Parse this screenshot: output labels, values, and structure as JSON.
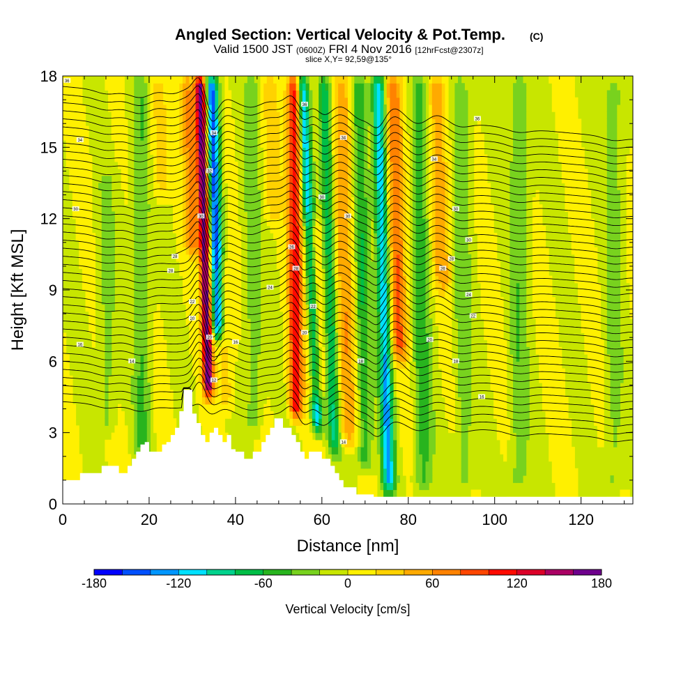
{
  "chart_data": {
    "type": "heatmap",
    "title": "Angled Section: Vertical Velocity & Pot.Temp.",
    "title_units": "(C)",
    "subtitle": {
      "valid": "Valid 1500 JST",
      "utc": "(0600Z)",
      "date": "FRI 4 Nov 2016",
      "forecast": "[12hrFcst@2307z]"
    },
    "slice_label": "slice X,Y= 92,59@135°",
    "xlabel": "Distance [nm]",
    "ylabel": "Height [Kft MSL]",
    "xlim": [
      0,
      132
    ],
    "ylim": [
      0,
      18
    ],
    "x_ticks": [
      0,
      20,
      40,
      60,
      80,
      100,
      120
    ],
    "y_ticks": [
      0,
      3,
      6,
      9,
      12,
      15,
      18
    ],
    "colorbar": {
      "label": "Vertical Velocity [cm/s]",
      "range": [
        -180,
        180
      ],
      "step": 20,
      "tick_values": [
        -180,
        -120,
        -60,
        0,
        60,
        120,
        180
      ],
      "colors": [
        "#0000ff",
        "#0050ff",
        "#0096ff",
        "#00e1ff",
        "#00d28c",
        "#00be46",
        "#28b41e",
        "#78d21e",
        "#c8e600",
        "#fff000",
        "#ffd200",
        "#ffaa00",
        "#ff8200",
        "#ff4600",
        "#ff0a00",
        "#dc0028",
        "#aa0064",
        "#6e008c"
      ]
    },
    "series": [
      {
        "kind": "updraft",
        "bands": [
          {
            "x": 31.8,
            "top": 18,
            "bottom": 4.6,
            "lean": 2.0,
            "amp": 175,
            "width": 1.2
          },
          {
            "x": 29.0,
            "top": 18,
            "bottom": 10.5,
            "lean": 1.0,
            "amp": 65,
            "width": 1.8
          },
          {
            "x": 37.0,
            "top": 10,
            "bottom": 4.0,
            "lean": 1.0,
            "amp": 35,
            "width": 1.8
          },
          {
            "x": 53.5,
            "top": 18,
            "bottom": 3.6,
            "lean": 0.5,
            "amp": 115,
            "width": 1.6
          },
          {
            "x": 57.5,
            "top": 12,
            "bottom": 4.5,
            "lean": 1.5,
            "amp": 55,
            "width": 2.2
          },
          {
            "x": 64.5,
            "top": 18,
            "bottom": 2.5,
            "lean": 1.5,
            "amp": 55,
            "width": 2.4
          },
          {
            "x": 76.5,
            "top": 18,
            "bottom": 6.0,
            "lean": 1.5,
            "amp": 80,
            "width": 2.0
          },
          {
            "x": 86.5,
            "top": 18,
            "bottom": 9.0,
            "lean": 1.5,
            "amp": 55,
            "width": 2.0
          },
          {
            "x": 48.0,
            "top": 18,
            "bottom": 12.0,
            "lean": 1.0,
            "amp": 35,
            "width": 2.0
          },
          {
            "x": 22.0,
            "top": 18,
            "bottom": 13.0,
            "lean": 1.0,
            "amp": 30,
            "width": 2.0
          }
        ]
      },
      {
        "kind": "downdraft",
        "bands": [
          {
            "x": 34.5,
            "top": 18,
            "bottom": 7.0,
            "lean": 1.5,
            "amp": -150,
            "width": 1.4
          },
          {
            "x": 55.5,
            "top": 18,
            "bottom": 3.0,
            "lean": 3.5,
            "amp": -120,
            "width": 1.3
          },
          {
            "x": 60.5,
            "top": 18,
            "bottom": 2.2,
            "lean": 2.5,
            "amp": -80,
            "width": 1.5
          },
          {
            "x": 68.5,
            "top": 18,
            "bottom": 1.5,
            "lean": 1.5,
            "amp": -60,
            "width": 1.8
          },
          {
            "x": 73.0,
            "top": 18,
            "bottom": 0.5,
            "lean": 2.5,
            "amp": -120,
            "width": 1.5
          },
          {
            "x": 82.5,
            "top": 18,
            "bottom": 0.5,
            "lean": 1.0,
            "amp": -50,
            "width": 2.0
          },
          {
            "x": 18.0,
            "top": 18,
            "bottom": 2.0,
            "lean": 0.5,
            "amp": -40,
            "width": 2.0
          },
          {
            "x": 10.0,
            "top": 14,
            "bottom": 3.0,
            "lean": 0.5,
            "amp": -30,
            "width": 2.0
          },
          {
            "x": 105.5,
            "top": 18,
            "bottom": 0.5,
            "lean": 0.0,
            "amp": -35,
            "width": 2.2
          },
          {
            "x": 43.5,
            "top": 18,
            "bottom": 3.0,
            "lean": 1.0,
            "amp": -35,
            "width": 2.0
          },
          {
            "x": 92.0,
            "top": 18,
            "bottom": 0.5,
            "lean": 1.0,
            "amp": -35,
            "width": 2.0
          },
          {
            "x": 127.5,
            "top": 18,
            "bottom": 0.5,
            "lean": 0.0,
            "amp": -30,
            "width": 2.0
          }
        ]
      }
    ],
    "terrain": {
      "x": [
        0,
        4,
        4,
        9,
        9,
        13,
        13,
        15,
        15,
        16,
        16,
        17,
        17,
        18,
        18,
        19,
        19,
        20,
        20,
        23,
        23,
        24,
        24,
        25,
        25,
        26,
        26,
        27,
        27,
        28,
        28,
        30,
        30,
        31,
        31,
        32,
        32,
        33,
        33,
        34,
        34,
        35,
        35,
        36,
        36,
        37,
        37,
        38,
        38,
        39,
        39,
        40,
        40,
        42,
        42,
        44,
        44,
        46,
        46,
        47,
        47,
        48,
        48,
        49,
        49,
        50,
        50,
        51,
        51,
        53,
        53,
        54,
        54,
        55,
        55,
        56,
        56,
        57,
        57,
        58,
        58,
        60,
        60,
        62,
        62,
        63,
        63,
        64,
        64,
        65,
        65,
        66,
        66,
        67,
        67,
        68,
        68,
        70,
        70,
        72,
        72,
        132
      ],
      "y": [
        1.0,
        1.0,
        1.3,
        1.3,
        1.6,
        1.6,
        1.3,
        1.3,
        1.6,
        1.6,
        1.9,
        1.9,
        2.2,
        2.2,
        2.5,
        2.5,
        2.6,
        2.6,
        2.2,
        2.2,
        2.5,
        2.5,
        2.6,
        2.6,
        2.9,
        2.9,
        3.2,
        3.2,
        3.9,
        3.9,
        4.8,
        4.8,
        3.8,
        3.8,
        3.4,
        3.4,
        2.9,
        2.9,
        2.6,
        2.6,
        3.0,
        3.0,
        3.2,
        3.2,
        2.9,
        2.9,
        2.6,
        2.6,
        2.9,
        2.9,
        2.3,
        2.3,
        2.2,
        2.2,
        1.9,
        1.9,
        2.2,
        2.2,
        2.6,
        2.6,
        2.9,
        2.9,
        3.2,
        3.2,
        3.6,
        3.6,
        3.6,
        3.6,
        3.2,
        3.2,
        2.9,
        2.9,
        2.6,
        2.6,
        2.2,
        2.2,
        1.9,
        1.9,
        2.2,
        2.2,
        2.2,
        2.2,
        1.9,
        1.9,
        1.6,
        1.6,
        1.3,
        1.3,
        1.0,
        1.0,
        0.7,
        0.7,
        0.7,
        0.7,
        0.7,
        0.7,
        0.4,
        0.4,
        0.4,
        0.4,
        0.3,
        0.3
      ]
    },
    "contours": {
      "count": 40,
      "base_height": 4.3,
      "spacing": 0.34,
      "labels": [
        {
          "x": 1,
          "y": 17.8,
          "text": "36"
        },
        {
          "x": 4,
          "y": 15.3,
          "text": "34"
        },
        {
          "x": 3,
          "y": 12.4,
          "text": "30"
        },
        {
          "x": 4,
          "y": 6.7,
          "text": "16"
        },
        {
          "x": 16,
          "y": 6.0,
          "text": "14"
        },
        {
          "x": 56,
          "y": 16.8,
          "text": "36"
        },
        {
          "x": 65,
          "y": 15.4,
          "text": "34"
        },
        {
          "x": 86,
          "y": 14.5,
          "text": "34"
        },
        {
          "x": 96,
          "y": 16.2,
          "text": "36"
        },
        {
          "x": 91,
          "y": 12.4,
          "text": "30"
        },
        {
          "x": 94,
          "y": 11.1,
          "text": "30"
        },
        {
          "x": 90,
          "y": 10.3,
          "text": "28"
        },
        {
          "x": 88,
          "y": 9.9,
          "text": "26"
        },
        {
          "x": 94,
          "y": 8.8,
          "text": "24"
        },
        {
          "x": 95,
          "y": 7.9,
          "text": "22"
        },
        {
          "x": 85,
          "y": 6.9,
          "text": "20"
        },
        {
          "x": 91,
          "y": 6.0,
          "text": "18"
        },
        {
          "x": 97,
          "y": 4.5,
          "text": "16"
        },
        {
          "x": 60,
          "y": 12.9,
          "text": "30"
        },
        {
          "x": 66,
          "y": 12.1,
          "text": "30"
        },
        {
          "x": 48,
          "y": 9.1,
          "text": "24"
        },
        {
          "x": 58,
          "y": 8.3,
          "text": "22"
        },
        {
          "x": 56,
          "y": 7.2,
          "text": "20"
        },
        {
          "x": 69,
          "y": 6.0,
          "text": "18"
        },
        {
          "x": 40,
          "y": 6.8,
          "text": "16"
        },
        {
          "x": 34,
          "y": 7.0,
          "text": "20"
        },
        {
          "x": 35,
          "y": 5.2,
          "text": "12"
        },
        {
          "x": 25,
          "y": 9.8,
          "text": "28"
        },
        {
          "x": 26,
          "y": 10.4,
          "text": "28"
        },
        {
          "x": 65,
          "y": 2.6,
          "text": "14"
        },
        {
          "x": 35,
          "y": 15.6,
          "text": "34"
        },
        {
          "x": 34,
          "y": 14.0,
          "text": "32"
        },
        {
          "x": 32,
          "y": 12.1,
          "text": "30"
        },
        {
          "x": 53,
          "y": 10.8,
          "text": "26"
        },
        {
          "x": 54,
          "y": 9.9,
          "text": "28"
        },
        {
          "x": 30,
          "y": 8.5,
          "text": "22"
        },
        {
          "x": 30,
          "y": 7.8,
          "text": "20"
        }
      ]
    }
  }
}
